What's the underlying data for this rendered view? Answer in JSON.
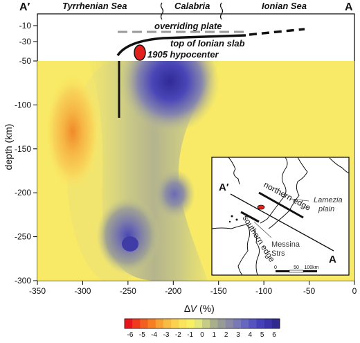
{
  "cross_section": {
    "corner_left": "A′",
    "corner_right": "A",
    "regions": [
      "Tyrrhenian Sea",
      "Calabria",
      "Ionian Sea"
    ],
    "xlabel": "",
    "ylabel": "depth (km)",
    "x_ticks": [
      "-350",
      "-300",
      "-250",
      "-200",
      "-150",
      "-100",
      "-50",
      "0"
    ],
    "y_ticks_upper": [
      "-10",
      "-30",
      "-50"
    ],
    "y_ticks_main": [
      "-100",
      "-150",
      "-200",
      "-250",
      "-300"
    ],
    "annotations": {
      "overriding_plate": "overriding plate",
      "slab": "top of Ionian slab",
      "hypocenter": "1905 hypocenter"
    }
  },
  "colorbar": {
    "label_prefix": "∆",
    "label_var": "V",
    "label_suffix": " (%)",
    "ticks": [
      "-6",
      "-5",
      "-4",
      "-3",
      "-2",
      "-1",
      "0",
      "1",
      "2",
      "3",
      "4",
      "5",
      "6"
    ],
    "colors": [
      "#e8141b",
      "#ef3a1c",
      "#f35f22",
      "#f67f24",
      "#f7a033",
      "#f8bb43",
      "#fbd24f",
      "#fbe45c",
      "#f9ef63",
      "#e3e67c",
      "#c6cc85",
      "#aaaf8b",
      "#979b96",
      "#8a8aa6",
      "#7a79b6",
      "#6767bf",
      "#5553c0",
      "#4440b8",
      "#3b33a8",
      "#302a8f"
    ]
  },
  "inset": {
    "corner_left": "A′",
    "corner_right": "A",
    "labels": {
      "northern_edge": "northern edge",
      "southern_edge": "southern edge",
      "lamezia_line1": "Lamezia",
      "lamezia_line2": "plain",
      "messina_line1": "Messina",
      "messina_line2": "Strs"
    },
    "scale_ticks": [
      "0",
      "50",
      "100km"
    ]
  }
}
